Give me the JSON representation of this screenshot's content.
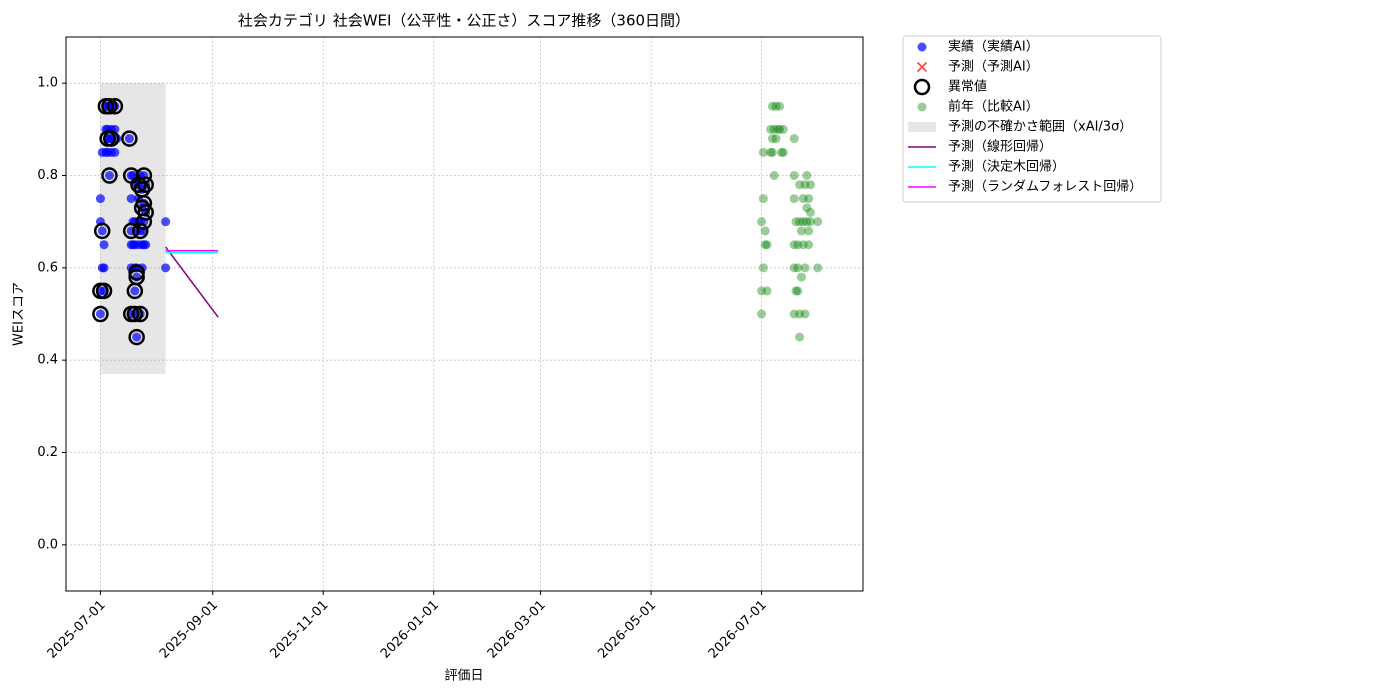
{
  "chart_data": {
    "type": "scatter",
    "title": "社会カテゴリ 社会WEI（公平性・公正さ）スコア推移（360日間）",
    "x_label": "評価日",
    "y_label": "WEIスコア",
    "xlim": [
      "2025-06-12",
      "2026-08-26"
    ],
    "ylim": [
      -0.1,
      1.1
    ],
    "xticks": [
      "2025-07-01",
      "2025-09-01",
      "2025-11-01",
      "2026-01-01",
      "2026-03-01",
      "2026-05-01",
      "2026-07-01"
    ],
    "yticks": [
      {
        "value": 0,
        "label": "0.0"
      },
      0.2,
      0.4,
      0.6,
      0.8,
      {
        "value": 1,
        "label": "1.0"
      }
    ],
    "grid": true,
    "legend": "outside-upper-right",
    "series": [
      {
        "name": "実績（実績AI）",
        "kind": "scatter",
        "marker": "dot",
        "color": "#0000ff",
        "alpha": 0.7,
        "x": [
          "2025-07-01",
          "2025-07-01",
          "2025-07-01",
          "2025-07-01",
          "2025-07-02",
          "2025-07-02",
          "2025-07-02",
          "2025-07-03",
          "2025-07-03",
          "2025-07-03",
          "2025-07-04",
          "2025-07-04",
          "2025-07-04",
          "2025-07-05",
          "2025-07-05",
          "2025-07-05",
          "2025-07-05",
          "2025-07-06",
          "2025-07-06",
          "2025-07-06",
          "2025-07-07",
          "2025-07-07",
          "2025-07-07",
          "2025-07-08",
          "2025-07-09",
          "2025-07-09",
          "2025-07-09",
          "2025-07-10",
          "2025-07-17",
          "2025-07-18",
          "2025-07-18",
          "2025-07-18",
          "2025-07-18",
          "2025-07-18",
          "2025-07-18",
          "2025-07-19",
          "2025-07-19",
          "2025-07-19",
          "2025-07-20",
          "2025-07-20",
          "2025-07-20",
          "2025-07-20",
          "2025-07-20",
          "2025-07-20",
          "2025-07-21",
          "2025-07-21",
          "2025-07-21",
          "2025-07-21",
          "2025-07-22",
          "2025-07-22",
          "2025-07-22",
          "2025-07-22",
          "2025-07-23",
          "2025-07-23",
          "2025-07-23",
          "2025-07-23",
          "2025-07-24",
          "2025-07-24",
          "2025-07-24",
          "2025-07-24",
          "2025-07-25",
          "2025-07-25",
          "2025-07-25",
          "2025-07-25",
          "2025-07-25",
          "2025-07-26",
          "2025-07-26",
          "2025-07-26",
          "2025-08-06",
          "2025-08-06"
        ],
        "values": [
          0.55,
          0.5,
          0.7,
          0.75,
          0.85,
          0.68,
          0.6,
          0.65,
          0.55,
          0.6,
          0.95,
          0.9,
          0.85,
          0.88,
          0.85,
          0.9,
          0.95,
          0.8,
          0.88,
          0.95,
          0.9,
          0.85,
          0.88,
          0.95,
          0.85,
          0.9,
          0.95,
          0.88,
          0.88,
          0.8,
          0.68,
          0.5,
          0.6,
          0.65,
          0.75,
          0.7,
          0.65,
          0.8,
          0.55,
          0.5,
          0.6,
          0.65,
          0.7,
          0.78,
          0.58,
          0.45,
          0.68,
          0.6,
          0.7,
          0.78,
          0.65,
          0.75,
          0.5,
          0.68,
          0.7,
          0.8,
          0.73,
          0.65,
          0.77,
          0.6,
          0.7,
          0.65,
          0.74,
          0.8,
          0.68,
          0.78,
          0.72,
          0.65,
          0.6,
          0.7
        ]
      },
      {
        "name": "予測（予測AI）",
        "kind": "scatter",
        "marker": "x",
        "color": "#ff0000",
        "alpha": 0.7,
        "x": [],
        "values": []
      },
      {
        "name": "異常値",
        "kind": "scatter",
        "marker": "ring",
        "color": "#000000",
        "alpha": 1,
        "x": [
          "2025-07-01",
          "2025-07-01",
          "2025-07-02",
          "2025-07-03",
          "2025-07-04",
          "2025-07-05",
          "2025-07-06",
          "2025-07-06",
          "2025-07-07",
          "2025-07-09",
          "2025-07-17",
          "2025-07-18",
          "2025-07-18",
          "2025-07-18",
          "2025-07-20",
          "2025-07-20",
          "2025-07-21",
          "2025-07-21",
          "2025-07-21",
          "2025-07-22",
          "2025-07-23",
          "2025-07-23",
          "2025-07-24",
          "2025-07-24",
          "2025-07-25",
          "2025-07-25",
          "2025-07-25",
          "2025-07-26",
          "2025-07-26"
        ],
        "values": [
          0.55,
          0.5,
          0.68,
          0.55,
          0.95,
          0.88,
          0.8,
          0.95,
          0.88,
          0.95,
          0.88,
          0.8,
          0.68,
          0.5,
          0.55,
          0.5,
          0.58,
          0.45,
          0.59,
          0.78,
          0.68,
          0.5,
          0.77,
          0.73,
          0.8,
          0.7,
          0.74,
          0.78,
          0.72
        ]
      },
      {
        "name": "前年（比較AI）",
        "kind": "scatter",
        "marker": "dot",
        "color": "#008000",
        "alpha": 0.4,
        "x": [
          "2026-07-01",
          "2026-07-01",
          "2026-07-01",
          "2026-07-02",
          "2026-07-02",
          "2026-07-02",
          "2026-07-03",
          "2026-07-03",
          "2026-07-04",
          "2026-07-04",
          "2026-07-06",
          "2026-07-06",
          "2026-07-07",
          "2026-07-07",
          "2026-07-07",
          "2026-07-08",
          "2026-07-08",
          "2026-07-09",
          "2026-07-09",
          "2026-07-10",
          "2026-07-11",
          "2026-07-11",
          "2026-07-12",
          "2026-07-13",
          "2026-07-13",
          "2026-07-19",
          "2026-07-19",
          "2026-07-19",
          "2026-07-19",
          "2026-07-19",
          "2026-07-19",
          "2026-07-20",
          "2026-07-20",
          "2026-07-21",
          "2026-07-21",
          "2026-07-21",
          "2026-07-22",
          "2026-07-22",
          "2026-07-22",
          "2026-07-22",
          "2026-07-23",
          "2026-07-23",
          "2026-07-24",
          "2026-07-24",
          "2026-07-24",
          "2026-07-25",
          "2026-07-25",
          "2026-07-25",
          "2026-07-26",
          "2026-07-26",
          "2026-07-26",
          "2026-07-27",
          "2026-07-27",
          "2026-07-27",
          "2026-07-28",
          "2026-07-28",
          "2026-07-28",
          "2026-08-01",
          "2026-08-01"
        ],
        "values": [
          0.7,
          0.55,
          0.5,
          0.75,
          0.85,
          0.6,
          0.68,
          0.65,
          0.65,
          0.55,
          0.9,
          0.85,
          0.95,
          0.88,
          0.85,
          0.8,
          0.9,
          0.95,
          0.88,
          0.9,
          0.95,
          0.9,
          0.85,
          0.9,
          0.85,
          0.88,
          0.8,
          0.75,
          0.65,
          0.6,
          0.5,
          0.7,
          0.55,
          0.65,
          0.6,
          0.55,
          0.78,
          0.7,
          0.5,
          0.45,
          0.68,
          0.58,
          0.75,
          0.7,
          0.65,
          0.78,
          0.6,
          0.5,
          0.8,
          0.73,
          0.7,
          0.75,
          0.68,
          0.65,
          0.78,
          0.72,
          0.7,
          0.7,
          0.6
        ]
      },
      {
        "name": "予測の不確かさ範囲（xAI/3σ）",
        "kind": "band",
        "color": "#808080",
        "alpha": 0.2,
        "x": [
          "2025-07-01",
          "2025-08-06"
        ],
        "lower": [
          0.37,
          0.37
        ],
        "upper": [
          1.0,
          1.0
        ]
      },
      {
        "name": "予測（線形回帰）",
        "kind": "line",
        "color": "#800080",
        "alpha": 1,
        "x": [
          "2025-08-06",
          "2025-09-04"
        ],
        "values": [
          0.645,
          0.493
        ]
      },
      {
        "name": "予測（決定木回帰）",
        "kind": "line",
        "color": "#00ffff",
        "alpha": 1,
        "x": [
          "2025-08-06",
          "2025-09-04"
        ],
        "values": [
          0.633,
          0.633
        ]
      },
      {
        "name": "予測（ランダムフォレスト回帰）",
        "kind": "line",
        "color": "#ff00ff",
        "alpha": 1,
        "x": [
          "2025-08-06",
          "2025-09-04"
        ],
        "values": [
          0.637,
          0.637
        ]
      }
    ]
  }
}
